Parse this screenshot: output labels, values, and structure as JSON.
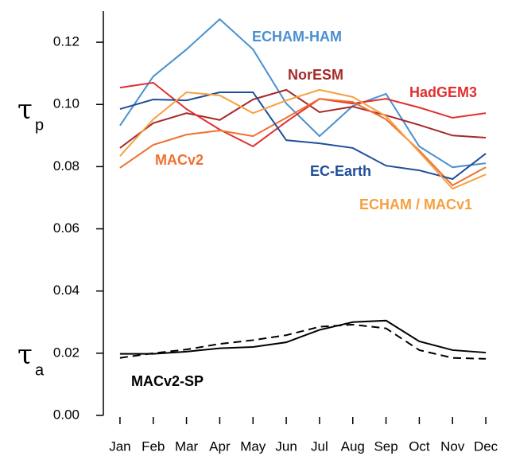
{
  "chart_data": {
    "type": "line",
    "categories": [
      "Jan",
      "Feb",
      "Mar",
      "Apr",
      "May",
      "Jun",
      "Jul",
      "Aug",
      "Sep",
      "Oct",
      "Nov",
      "Dec"
    ],
    "ylim": [
      0,
      0.13
    ],
    "yticks": [
      {
        "value": 0,
        "label": "0.00"
      },
      0.02,
      0.04,
      0.06,
      0.08,
      {
        "value": 0.1,
        "label": "0.10"
      },
      0.12
    ],
    "annotations": [
      {
        "symbol": "τ",
        "subscript": "p"
      },
      {
        "symbol": "τ",
        "subscript": "a"
      }
    ],
    "series": [
      {
        "name": "ECHAM-HAM",
        "color": "#4a90d0",
        "values": [
          0.0932,
          0.109,
          0.1177,
          0.1274,
          0.1177,
          0.1003,
          0.0898,
          0.0995,
          0.1034,
          0.0865,
          0.0798,
          0.0811
        ]
      },
      {
        "name": "NorESM",
        "color": "#a52a2a",
        "values": [
          0.086,
          0.094,
          0.0972,
          0.095,
          0.1016,
          0.1047,
          0.0975,
          0.0993,
          0.0965,
          0.0934,
          0.09,
          0.0893
        ]
      },
      {
        "name": "HadGEM3",
        "color": "#e03030",
        "values": [
          0.1054,
          0.107,
          0.0985,
          0.0919,
          0.0865,
          0.0944,
          0.1018,
          0.1003,
          0.1018,
          0.099,
          0.0957,
          0.0972
        ]
      },
      {
        "name": "MACv2",
        "color": "#f07030",
        "values": [
          0.0796,
          0.087,
          0.0903,
          0.0916,
          0.0898,
          0.0957,
          0.1018,
          0.1008,
          0.0952,
          0.0852,
          0.074,
          0.0798
        ]
      },
      {
        "name": "EC-Earth",
        "color": "#1f4e9a",
        "values": [
          0.0985,
          0.1016,
          0.1013,
          0.1039,
          0.1039,
          0.0885,
          0.0875,
          0.086,
          0.0803,
          0.0788,
          0.076,
          0.0842
        ]
      },
      {
        "name": "ECHAM / MACv1",
        "color": "#f5a040",
        "values": [
          0.0834,
          0.0952,
          0.1039,
          0.1029,
          0.0972,
          0.1013,
          0.1047,
          0.1024,
          0.0962,
          0.0847,
          0.0729,
          0.0775
        ]
      },
      {
        "name": "MACv2-SP",
        "color": "#000000",
        "values": [
          0.0198,
          0.0198,
          0.0205,
          0.0216,
          0.022,
          0.0235,
          0.0275,
          0.03,
          0.0305,
          0.0238,
          0.021,
          0.0202
        ]
      },
      {
        "color": "#000000",
        "dash": true,
        "values": [
          0.0185,
          0.02,
          0.0212,
          0.023,
          0.0242,
          0.0258,
          0.0285,
          0.0292,
          0.028,
          0.021,
          0.0185,
          0.0182
        ]
      }
    ]
  }
}
